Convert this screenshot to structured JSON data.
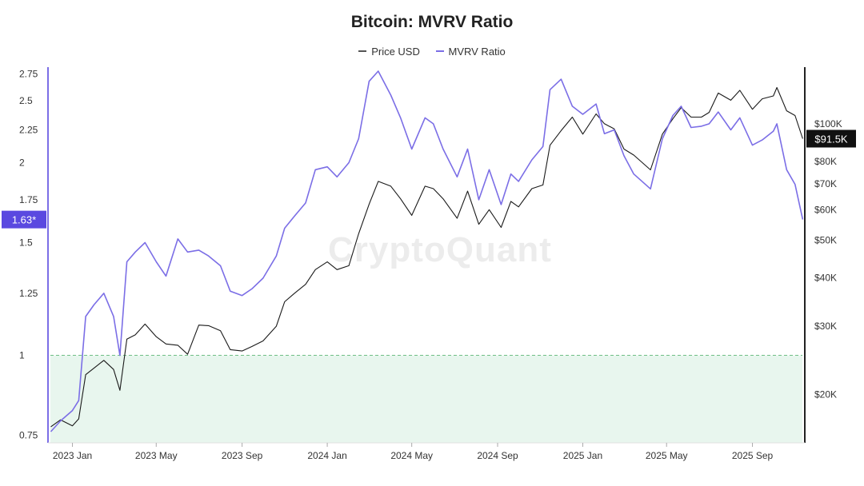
{
  "chart_data": {
    "type": "line",
    "title": "Bitcoin: MVRV Ratio",
    "legend_position": "top-center",
    "grid": false,
    "series": [
      {
        "name": "Price USD",
        "color": "#1a1a1a",
        "axis": "right",
        "x": [
          "2022-12-01",
          "2022-12-15",
          "2023-01-01",
          "2023-01-10",
          "2023-01-20",
          "2023-02-01",
          "2023-02-15",
          "2023-03-01",
          "2023-03-10",
          "2023-03-20",
          "2023-04-01",
          "2023-04-15",
          "2023-05-01",
          "2023-05-15",
          "2023-06-01",
          "2023-06-15",
          "2023-07-01",
          "2023-07-15",
          "2023-08-01",
          "2023-08-15",
          "2023-09-01",
          "2023-09-15",
          "2023-10-01",
          "2023-10-20",
          "2023-11-01",
          "2023-11-15",
          "2023-12-01",
          "2023-12-15",
          "2024-01-01",
          "2024-01-15",
          "2024-02-01",
          "2024-02-15",
          "2024-03-01",
          "2024-03-14",
          "2024-04-01",
          "2024-04-15",
          "2024-05-01",
          "2024-05-20",
          "2024-06-01",
          "2024-06-15",
          "2024-07-05",
          "2024-07-20",
          "2024-08-05",
          "2024-08-20",
          "2024-09-06",
          "2024-09-20",
          "2024-10-01",
          "2024-10-20",
          "2024-11-05",
          "2024-11-15",
          "2024-12-01",
          "2024-12-17",
          "2025-01-01",
          "2025-01-20",
          "2025-02-01",
          "2025-02-15",
          "2025-03-01",
          "2025-03-15",
          "2025-04-08",
          "2025-04-25",
          "2025-05-10",
          "2025-05-22",
          "2025-06-05",
          "2025-06-20",
          "2025-07-01",
          "2025-07-14",
          "2025-08-01",
          "2025-08-14",
          "2025-09-01",
          "2025-09-15",
          "2025-10-01",
          "2025-10-06",
          "2025-10-20",
          "2025-11-01",
          "2025-11-12"
        ],
        "values": [
          16500,
          17200,
          16600,
          17300,
          22500,
          23400,
          24500,
          23200,
          20500,
          27800,
          28500,
          30400,
          28200,
          27000,
          26800,
          25400,
          30200,
          30100,
          29200,
          26100,
          25900,
          26600,
          27500,
          30000,
          34700,
          36500,
          38500,
          42000,
          44000,
          42000,
          43000,
          52000,
          62000,
          71000,
          69000,
          64000,
          58000,
          69000,
          68000,
          64000,
          57000,
          67000,
          55000,
          60000,
          54000,
          63000,
          61000,
          68000,
          69500,
          88000,
          96000,
          104000,
          94000,
          106000,
          100000,
          97000,
          86000,
          83000,
          76000,
          94000,
          103000,
          110000,
          104000,
          104000,
          107000,
          120000,
          115000,
          122000,
          109000,
          116000,
          118000,
          124000,
          108000,
          105000,
          91500
        ]
      },
      {
        "name": "MVRV Ratio",
        "color": "#7b6ee6",
        "axis": "left",
        "x": [
          "2022-12-01",
          "2022-12-15",
          "2023-01-01",
          "2023-01-10",
          "2023-01-20",
          "2023-02-01",
          "2023-02-15",
          "2023-03-01",
          "2023-03-10",
          "2023-03-20",
          "2023-04-01",
          "2023-04-15",
          "2023-05-01",
          "2023-05-15",
          "2023-06-01",
          "2023-06-15",
          "2023-07-01",
          "2023-07-15",
          "2023-08-01",
          "2023-08-15",
          "2023-09-01",
          "2023-09-15",
          "2023-10-01",
          "2023-10-20",
          "2023-11-01",
          "2023-11-15",
          "2023-12-01",
          "2023-12-15",
          "2024-01-01",
          "2024-01-15",
          "2024-02-01",
          "2024-02-15",
          "2024-03-01",
          "2024-03-14",
          "2024-04-01",
          "2024-04-15",
          "2024-05-01",
          "2024-05-20",
          "2024-06-01",
          "2024-06-15",
          "2024-07-05",
          "2024-07-20",
          "2024-08-05",
          "2024-08-20",
          "2024-09-06",
          "2024-09-20",
          "2024-10-01",
          "2024-10-20",
          "2024-11-05",
          "2024-11-15",
          "2024-12-01",
          "2024-12-17",
          "2025-01-01",
          "2025-01-20",
          "2025-02-01",
          "2025-02-15",
          "2025-03-01",
          "2025-03-15",
          "2025-04-08",
          "2025-04-25",
          "2025-05-10",
          "2025-05-22",
          "2025-06-05",
          "2025-06-20",
          "2025-07-01",
          "2025-07-14",
          "2025-08-01",
          "2025-08-14",
          "2025-09-01",
          "2025-09-15",
          "2025-10-01",
          "2025-10-06",
          "2025-10-20",
          "2025-11-01",
          "2025-11-12"
        ],
        "values": [
          0.76,
          0.79,
          0.82,
          0.85,
          1.15,
          1.2,
          1.25,
          1.15,
          1.0,
          1.4,
          1.45,
          1.5,
          1.4,
          1.33,
          1.52,
          1.45,
          1.46,
          1.43,
          1.38,
          1.26,
          1.24,
          1.27,
          1.32,
          1.43,
          1.58,
          1.65,
          1.73,
          1.95,
          1.97,
          1.9,
          2.0,
          2.18,
          2.68,
          2.78,
          2.55,
          2.35,
          2.1,
          2.35,
          2.3,
          2.1,
          1.9,
          2.1,
          1.75,
          1.95,
          1.72,
          1.92,
          1.87,
          2.02,
          2.12,
          2.6,
          2.7,
          2.45,
          2.38,
          2.47,
          2.22,
          2.25,
          2.05,
          1.92,
          1.82,
          2.18,
          2.37,
          2.45,
          2.27,
          2.28,
          2.3,
          2.4,
          2.25,
          2.35,
          2.13,
          2.17,
          2.24,
          2.3,
          1.95,
          1.85,
          1.63
        ]
      }
    ],
    "x_ticks": [
      "2023 Jan",
      "2023 May",
      "2023 Sep",
      "2024 Jan",
      "2024 May",
      "2024 Sep",
      "2025 Jan",
      "2025 May",
      "2025 Sep"
    ],
    "x_tick_dates": [
      "2023-01-01",
      "2023-05-01",
      "2023-09-01",
      "2024-01-01",
      "2024-05-01",
      "2024-09-01",
      "2025-01-01",
      "2025-05-01",
      "2025-09-01"
    ],
    "x_range": [
      "2022-11-27",
      "2025-11-15"
    ],
    "y_left": {
      "ticks": [
        0.75,
        1,
        1.25,
        1.5,
        1.75,
        2,
        2.25,
        2.5,
        2.75
      ],
      "tick_labels": [
        "0.75",
        "1",
        "1.25",
        "1.5",
        "1.75",
        "2",
        "2.25",
        "2.5",
        "2.75"
      ],
      "range": [
        0.73,
        2.82
      ],
      "scale": "log",
      "current_value_label": "1.63*",
      "current_value": 1.63,
      "current_color": "#5a49e0"
    },
    "y_right": {
      "ticks": [
        20000,
        30000,
        40000,
        50000,
        60000,
        70000,
        80000,
        100000
      ],
      "tick_labels": [
        "$20K",
        "$30K",
        "$40K",
        "$50K",
        "$60K",
        "$70K",
        "$80K",
        "$100K"
      ],
      "range": [
        15000,
        140000
      ],
      "scale": "log",
      "current_value_label": "$91.5K",
      "current_value": 91500,
      "current_color": "#111111"
    },
    "reference_line": {
      "value": 1,
      "axis": "left",
      "color": "#6fbf85",
      "fill": "#e8f6ee"
    }
  },
  "watermark": "CryptoQuant"
}
